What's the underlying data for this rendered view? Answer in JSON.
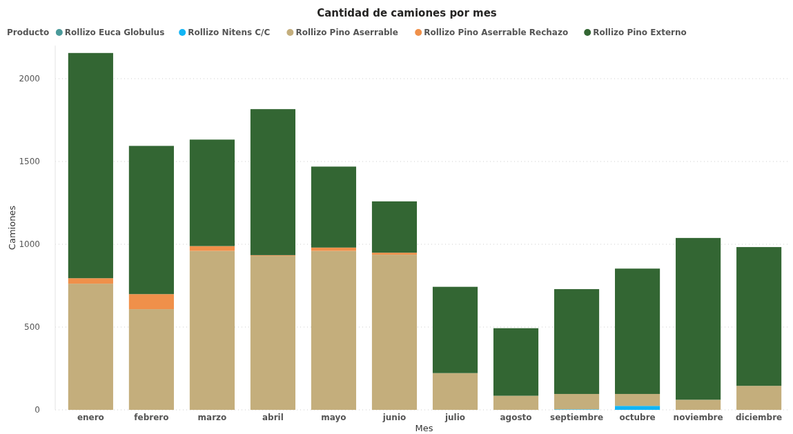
{
  "chart_data": {
    "type": "bar",
    "title": "Cantidad de camiones por mes",
    "xlabel": "Mes",
    "ylabel": "Camiones",
    "legend_title": "Producto",
    "categories": [
      "enero",
      "febrero",
      "marzo",
      "abril",
      "mayo",
      "junio",
      "julio",
      "agosto",
      "septiembre",
      "octubre",
      "noviembre",
      "diciembre"
    ],
    "stacked": true,
    "series": [
      {
        "name": "Rollizo Euca Globulus",
        "color": "#4a9a9a",
        "values": [
          null,
          null,
          null,
          null,
          null,
          null,
          null,
          null,
          null,
          null,
          null,
          null
        ]
      },
      {
        "name": "Rollizo Nitens C/C",
        "color": "#12b5f5",
        "values": [
          null,
          null,
          null,
          null,
          null,
          null,
          null,
          null,
          3,
          24,
          null,
          null
        ]
      },
      {
        "name": "Rollizo Pino Aserrable",
        "color": "#c4ae7c",
        "values": [
          762,
          608,
          960,
          930,
          960,
          937,
          222,
          85,
          93,
          72,
          61,
          145
        ]
      },
      {
        "name": "Rollizo Pino Aserrable Rechazo",
        "color": "#f0904a",
        "values": [
          33,
          91,
          29,
          4,
          20,
          12,
          null,
          null,
          null,
          null,
          null,
          null
        ]
      },
      {
        "name": "Rollizo Pino Externo",
        "color": "#336633",
        "values": [
          1360,
          895,
          643,
          882,
          489,
          310,
          521,
          408,
          633,
          757,
          977,
          838
        ]
      }
    ],
    "ylim": [
      0,
      2200
    ],
    "yticks": [
      0,
      500,
      1000,
      1500,
      2000
    ],
    "grid": "y",
    "legend": "top left"
  }
}
